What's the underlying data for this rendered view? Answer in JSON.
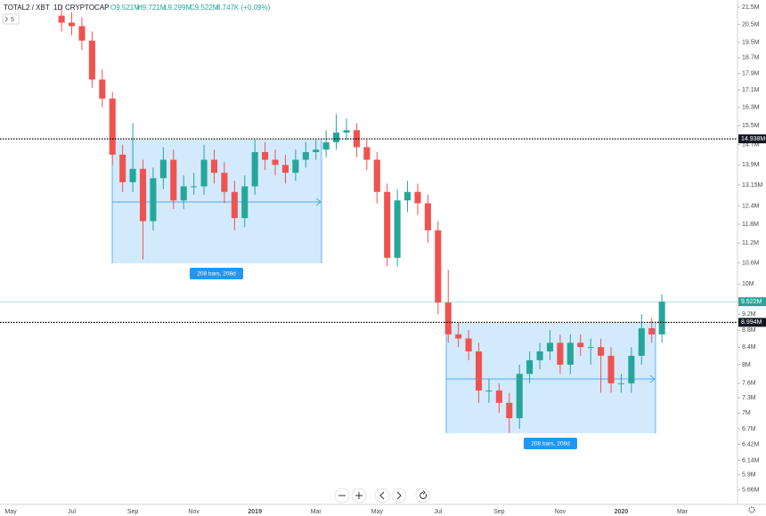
{
  "chart_data": {
    "type": "candlestick",
    "header": {
      "symbol": "TOTAL2 / XBT",
      "interval": "1D",
      "exchange": "CRYPTOCAP",
      "open": "O9.521M",
      "high": "H9.721M",
      "low": "L9.299M",
      "close": "C9.522M",
      "change": "8.747K (+0.09%)",
      "indicators": "5"
    },
    "categories": [
      "May",
      null,
      null,
      null,
      null,
      null,
      "Jul",
      null,
      null,
      null,
      null,
      null,
      "Sep",
      null,
      null,
      null,
      null,
      null,
      "Nov",
      null,
      null,
      null,
      null,
      null,
      "2019",
      null,
      null,
      null,
      null,
      null,
      "Mar",
      null,
      null,
      null,
      null,
      null,
      "May",
      null,
      null,
      null,
      null,
      null,
      "Jul",
      null,
      null,
      null,
      null,
      null,
      "Sep",
      null,
      null,
      null,
      null,
      null,
      "Nov",
      null,
      null,
      null,
      null,
      null,
      "2020",
      null,
      null,
      null,
      null,
      null,
      "Mar"
    ],
    "open": [
      null,
      null,
      null,
      null,
      null,
      21.0,
      20.6,
      20.4,
      19.6,
      17.6,
      16.7,
      14.3,
      13.25,
      13.75,
      11.9,
      13.4,
      14.1,
      12.6,
      13.1,
      13.1,
      14.1,
      13.6,
      12.9,
      12.0,
      13.1,
      14.4,
      14.1,
      13.9,
      13.6,
      14.1,
      14.4,
      14.5,
      14.8,
      15.2,
      15.3,
      14.6,
      14.1,
      12.9,
      10.75,
      12.6,
      12.9,
      12.5,
      11.6,
      9.5,
      8.7,
      8.6,
      8.3,
      7.45,
      7.45,
      7.2,
      6.9,
      7.8,
      8.1,
      8.3,
      8.5,
      8.0,
      8.5,
      8.4,
      8.4,
      8.2,
      7.6,
      7.6,
      8.2,
      8.85,
      8.7,
      null,
      null
    ],
    "high": [
      null,
      null,
      null,
      null,
      null,
      21.6,
      21.2,
      20.9,
      20.1,
      18.1,
      17.0,
      14.7,
      15.6,
      14.1,
      13.8,
      14.6,
      14.5,
      13.5,
      13.6,
      14.7,
      14.5,
      14.0,
      13.3,
      13.5,
      14.9,
      14.8,
      14.5,
      14.3,
      14.5,
      14.8,
      14.9,
      15.3,
      16.0,
      15.8,
      15.6,
      14.9,
      14.4,
      13.2,
      13.0,
      13.3,
      13.2,
      12.8,
      11.9,
      10.4,
      9.0,
      8.8,
      8.5,
      7.7,
      7.6,
      7.4,
      8.0,
      8.3,
      8.5,
      8.8,
      8.7,
      8.7,
      8.7,
      8.6,
      8.6,
      8.4,
      7.8,
      8.4,
      9.2,
      9.1,
      9.72,
      null,
      null
    ],
    "low": [
      null,
      null,
      null,
      null,
      null,
      20.1,
      19.9,
      19.1,
      17.2,
      16.3,
      13.9,
      12.9,
      12.9,
      10.7,
      11.6,
      13.0,
      12.3,
      12.3,
      12.8,
      12.8,
      13.2,
      12.5,
      11.6,
      11.7,
      12.8,
      13.7,
      13.5,
      13.2,
      13.3,
      13.8,
      14.1,
      14.2,
      14.5,
      14.9,
      14.2,
      13.7,
      12.5,
      10.5,
      10.5,
      12.2,
      12.1,
      11.2,
      9.2,
      8.5,
      8.4,
      8.1,
      7.2,
      7.2,
      7.0,
      6.62,
      6.7,
      7.6,
      7.9,
      8.1,
      7.8,
      7.8,
      8.2,
      8.0,
      7.4,
      7.4,
      7.4,
      7.4,
      8.0,
      8.5,
      8.5,
      null,
      null
    ],
    "close": [
      null,
      null,
      null,
      null,
      null,
      20.6,
      20.4,
      19.6,
      17.6,
      16.7,
      14.3,
      13.25,
      13.75,
      11.9,
      13.4,
      14.1,
      12.6,
      13.1,
      13.1,
      14.1,
      13.6,
      12.9,
      12.0,
      13.1,
      14.4,
      14.1,
      13.9,
      13.6,
      14.1,
      14.4,
      14.5,
      14.8,
      15.2,
      15.3,
      14.6,
      14.1,
      12.9,
      10.75,
      12.6,
      12.9,
      12.5,
      11.6,
      9.5,
      8.7,
      8.6,
      8.3,
      7.45,
      7.45,
      7.2,
      6.9,
      7.8,
      8.1,
      8.3,
      8.5,
      8.0,
      8.5,
      8.4,
      8.4,
      8.2,
      7.6,
      7.6,
      8.2,
      8.85,
      8.7,
      9.52,
      null,
      null
    ],
    "up_color": "#26a69a",
    "down_color": "#ef5350",
    "log_scale": true,
    "ylim": [
      5.45,
      21.93
    ],
    "yticks": [
      {
        "value": 21.5,
        "label": "21.5M"
      },
      {
        "value": 20.5,
        "label": "20.5M"
      },
      {
        "value": 19.5,
        "label": "19.5M"
      },
      {
        "value": 18.7,
        "label": "18.7M"
      },
      {
        "value": 17.9,
        "label": "17.9M"
      },
      {
        "value": 17.1,
        "label": "17.1M"
      },
      {
        "value": 16.3,
        "label": "16.3M"
      },
      {
        "value": 15.5,
        "label": "15.5M"
      },
      {
        "value": 14.7,
        "label": "14.7M"
      },
      {
        "value": 13.9,
        "label": "13.9M"
      },
      {
        "value": 13.15,
        "label": "13.15M"
      },
      {
        "value": 12.4,
        "label": "12.4M"
      },
      {
        "value": 11.8,
        "label": "11.8M"
      },
      {
        "value": 11.2,
        "label": "11.2M"
      },
      {
        "value": 10.6,
        "label": "10.6M"
      },
      {
        "value": 10,
        "label": "10M"
      },
      {
        "value": 9.2,
        "label": "9.2M"
      },
      {
        "value": 8.8,
        "label": "8.8M"
      },
      {
        "value": 8.4,
        "label": "8.4M"
      },
      {
        "value": 8,
        "label": "8M"
      },
      {
        "value": 7.6,
        "label": "7.6M"
      },
      {
        "value": 7.3,
        "label": "7.3M"
      },
      {
        "value": 7,
        "label": "7M"
      },
      {
        "value": 6.7,
        "label": "6.7M"
      },
      {
        "value": 6.42,
        "label": "6.42M"
      },
      {
        "value": 6.14,
        "label": "6.14M"
      },
      {
        "value": 5.9,
        "label": "5.9M"
      },
      {
        "value": 5.66,
        "label": "5.66M"
      }
    ],
    "hlines": [
      {
        "value": 14.938,
        "label": "14.938M"
      },
      {
        "value": 8.994,
        "label": "8.994M"
      }
    ],
    "last_price": {
      "value": 9.522,
      "label": "9.522M"
    },
    "ranges": [
      {
        "label": "208 bars, 208d"
      },
      {
        "label": "208 bars, 208d"
      }
    ]
  }
}
